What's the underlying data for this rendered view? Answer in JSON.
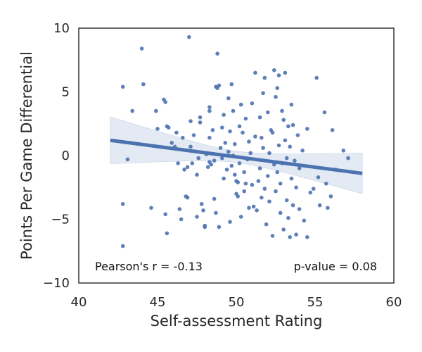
{
  "chart_data": {
    "type": "scatter",
    "title": "",
    "xlabel": "Self-assessment Rating",
    "ylabel": "Points Per Game Differential",
    "xlim": [
      40,
      60
    ],
    "ylim": [
      -10,
      10
    ],
    "xticks": [
      "40",
      "45",
      "50",
      "55",
      "60"
    ],
    "yticks": [
      "10",
      "5",
      "0",
      "−5",
      "−10"
    ],
    "grid": false,
    "point_color": "#4c72b0",
    "annotations": {
      "pearson": "Pearson's r = -0.13",
      "pvalue": "p-value = 0.08"
    },
    "regression": {
      "x": [
        42,
        58
      ],
      "y": [
        1.2,
        -1.4
      ],
      "ci_lower": [
        -0.7,
        -3.0
      ],
      "ci_upper": [
        3.0,
        0.2
      ],
      "ci_at_mean_x": 50,
      "ci_at_mean_halfwidth": 0.45
    },
    "points": [
      [
        42.8,
        5.4
      ],
      [
        42.8,
        -3.8
      ],
      [
        42.8,
        -7.1
      ],
      [
        43.1,
        -0.3
      ],
      [
        43.4,
        3.5
      ],
      [
        44.0,
        8.4
      ],
      [
        44.1,
        5.6
      ],
      [
        44.6,
        -4.1
      ],
      [
        44.9,
        3.5
      ],
      [
        45.0,
        2.1
      ],
      [
        45.4,
        4.4
      ],
      [
        45.5,
        4.2
      ],
      [
        45.5,
        -4.6
      ],
      [
        45.6,
        -6.1
      ],
      [
        45.6,
        2.3
      ],
      [
        45.7,
        2.2
      ],
      [
        45.9,
        1.0
      ],
      [
        46.1,
        0.7
      ],
      [
        46.2,
        1.8
      ],
      [
        46.3,
        -0.6
      ],
      [
        46.4,
        -4.2
      ],
      [
        46.5,
        -5.0
      ],
      [
        46.6,
        1.4
      ],
      [
        46.7,
        -1.1
      ],
      [
        46.8,
        -3.2
      ],
      [
        46.9,
        -3.3
      ],
      [
        46.9,
        -0.9
      ],
      [
        47.0,
        9.3
      ],
      [
        47.1,
        0.7
      ],
      [
        47.1,
        2.7
      ],
      [
        47.2,
        -0.6
      ],
      [
        47.3,
        1.6
      ],
      [
        47.5,
        -4.8
      ],
      [
        47.5,
        -1.5
      ],
      [
        47.6,
        -0.2
      ],
      [
        47.7,
        3.0
      ],
      [
        47.7,
        2.6
      ],
      [
        47.8,
        -3.8
      ],
      [
        47.9,
        -4.3
      ],
      [
        48.0,
        -5.6
      ],
      [
        48.0,
        -5.5
      ],
      [
        48.1,
        0.1
      ],
      [
        48.2,
        -0.9
      ],
      [
        48.3,
        1.4
      ],
      [
        48.3,
        3.5
      ],
      [
        48.3,
        3.8
      ],
      [
        48.3,
        -0.5
      ],
      [
        48.4,
        -0.7
      ],
      [
        48.5,
        2.0
      ],
      [
        48.6,
        -3.4
      ],
      [
        48.6,
        -0.4
      ],
      [
        48.7,
        5.4
      ],
      [
        48.7,
        -4.5
      ],
      [
        48.8,
        5.3
      ],
      [
        48.8,
        8.0
      ],
      [
        48.9,
        -5.6
      ],
      [
        48.9,
        5.5
      ],
      [
        49.0,
        0.6
      ],
      [
        49.1,
        2.2
      ],
      [
        49.1,
        -0.2
      ],
      [
        49.2,
        3.2
      ],
      [
        49.2,
        -1.8
      ],
      [
        49.3,
        1.0
      ],
      [
        49.4,
        -1.1
      ],
      [
        49.5,
        4.5
      ],
      [
        49.5,
        0.3
      ],
      [
        49.6,
        1.9
      ],
      [
        49.6,
        -5.2
      ],
      [
        49.7,
        -0.8
      ],
      [
        49.7,
        5.6
      ],
      [
        49.8,
        3.5
      ],
      [
        49.8,
        0.0
      ],
      [
        49.9,
        -1.5
      ],
      [
        49.9,
        0.9
      ],
      [
        50.0,
        -2.0
      ],
      [
        50.0,
        -3.0
      ],
      [
        50.1,
        -2.1
      ],
      [
        50.1,
        -3.2
      ],
      [
        50.2,
        2.3
      ],
      [
        50.2,
        -0.6
      ],
      [
        50.3,
        4.0
      ],
      [
        50.3,
        -4.8
      ],
      [
        50.4,
        1.8
      ],
      [
        50.5,
        -1.3
      ],
      [
        50.5,
        -2.8
      ],
      [
        50.6,
        2.9
      ],
      [
        50.6,
        -2.2
      ],
      [
        50.7,
        -0.3
      ],
      [
        50.8,
        1.1
      ],
      [
        50.8,
        -4.1
      ],
      [
        50.9,
        0.2
      ],
      [
        51.0,
        4.1
      ],
      [
        51.0,
        -2.3
      ],
      [
        51.1,
        -4.0
      ],
      [
        51.2,
        1.5
      ],
      [
        51.2,
        6.5
      ],
      [
        51.3,
        -4.3
      ],
      [
        51.4,
        -2.0
      ],
      [
        51.5,
        3.0
      ],
      [
        51.5,
        -1.0
      ],
      [
        51.6,
        1.4
      ],
      [
        51.6,
        -3.3
      ],
      [
        51.7,
        0.6
      ],
      [
        51.7,
        4.9
      ],
      [
        51.8,
        -2.6
      ],
      [
        51.8,
        6.1
      ],
      [
        51.9,
        -5.4
      ],
      [
        52.0,
        -1.6
      ],
      [
        52.0,
        3.4
      ],
      [
        52.1,
        0.2
      ],
      [
        52.1,
        -3.6
      ],
      [
        52.2,
        2.0
      ],
      [
        52.3,
        -6.3
      ],
      [
        52.3,
        1.8
      ],
      [
        52.4,
        -0.7
      ],
      [
        52.4,
        6.7
      ],
      [
        52.5,
        -2.8
      ],
      [
        52.5,
        4.6
      ],
      [
        52.6,
        -1.3
      ],
      [
        52.6,
        5.3
      ],
      [
        52.7,
        6.3
      ],
      [
        52.7,
        0.8
      ],
      [
        52.8,
        -4.5
      ],
      [
        52.8,
        -2.2
      ],
      [
        52.9,
        3.5
      ],
      [
        52.9,
        -0.6
      ],
      [
        53.0,
        2.8
      ],
      [
        53.0,
        -5.8
      ],
      [
        53.1,
        1.2
      ],
      [
        53.1,
        6.5
      ],
      [
        53.2,
        -3.5
      ],
      [
        53.2,
        -0.2
      ],
      [
        53.3,
        -4.9
      ],
      [
        53.3,
        2.3
      ],
      [
        53.4,
        -6.4
      ],
      [
        53.4,
        0.7
      ],
      [
        53.5,
        -1.8
      ],
      [
        53.5,
        4.0
      ],
      [
        53.6,
        2.4
      ],
      [
        53.6,
        -3.9
      ],
      [
        53.7,
        -0.4
      ],
      [
        53.8,
        -2.5
      ],
      [
        53.8,
        -6.2
      ],
      [
        53.9,
        1.6
      ],
      [
        54.0,
        -1.0
      ],
      [
        54.0,
        -4.2
      ],
      [
        54.2,
        0.4
      ],
      [
        54.3,
        -5.1
      ],
      [
        54.5,
        2.1
      ],
      [
        54.5,
        -6.4
      ],
      [
        54.7,
        -2.9
      ],
      [
        54.9,
        -2.6
      ],
      [
        55.1,
        6.1
      ],
      [
        55.2,
        -1.7
      ],
      [
        55.3,
        -3.9
      ],
      [
        55.6,
        3.4
      ],
      [
        55.7,
        -2.2
      ],
      [
        55.8,
        -4.1
      ],
      [
        56.0,
        -3.2
      ],
      [
        56.3,
        -1.1
      ],
      [
        56.8,
        0.4
      ],
      [
        57.1,
        -0.2
      ],
      [
        56.1,
        2.0
      ]
    ]
  }
}
